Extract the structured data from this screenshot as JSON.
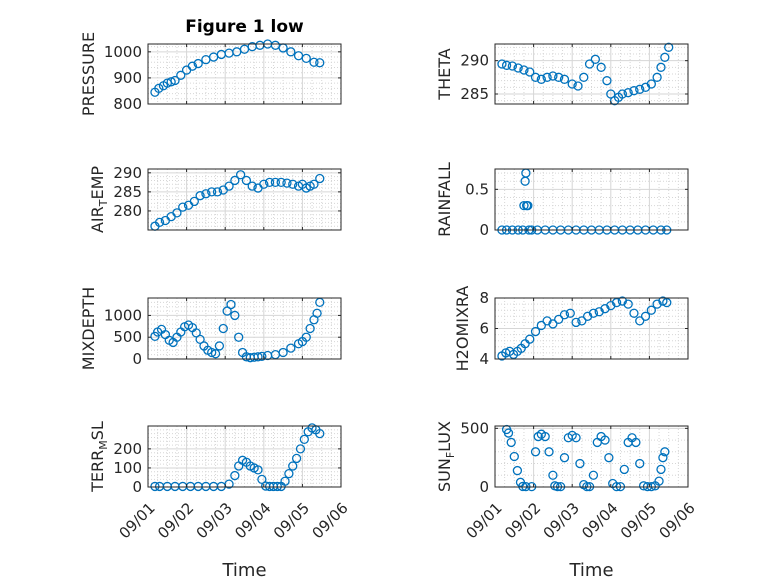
{
  "figure": {
    "title": "Figure 1 low"
  },
  "style": {
    "marker_color": "#0072BD",
    "axis_color": "#262626",
    "grid_color": "#b0b0b0"
  },
  "chart_data": [
    {
      "type": "scatter",
      "ylabel": "PRESSURE",
      "title": "Figure 1 low",
      "xlim": [
        0,
        5
      ],
      "ylim": [
        800,
        1030
      ],
      "yticks": [
        800,
        900,
        1000
      ],
      "grid": true,
      "xlabel": "",
      "x": [
        0.18,
        0.28,
        0.4,
        0.5,
        0.6,
        0.7,
        0.85,
        1.0,
        1.15,
        1.3,
        1.5,
        1.7,
        1.9,
        2.1,
        2.3,
        2.5,
        2.7,
        2.9,
        3.1,
        3.3,
        3.5,
        3.7,
        3.9,
        4.1,
        4.3,
        4.45
      ],
      "y": [
        845,
        860,
        870,
        880,
        885,
        890,
        910,
        930,
        945,
        955,
        970,
        980,
        990,
        995,
        1000,
        1010,
        1020,
        1025,
        1030,
        1025,
        1015,
        1000,
        985,
        975,
        960,
        958
      ]
    },
    {
      "type": "scatter",
      "ylabel": "THETA",
      "xlim": [
        0,
        5
      ],
      "ylim": [
        283.5,
        292.5
      ],
      "yticks": [
        285,
        290
      ],
      "grid": true,
      "xlabel": "",
      "x": [
        0.18,
        0.3,
        0.45,
        0.6,
        0.75,
        0.9,
        1.05,
        1.2,
        1.35,
        1.5,
        1.65,
        1.8,
        2.0,
        2.15,
        2.3,
        2.45,
        2.6,
        2.75,
        2.9,
        3.0,
        3.1,
        3.2,
        3.3,
        3.45,
        3.6,
        3.75,
        3.9,
        4.05,
        4.2,
        4.3,
        4.4,
        4.5
      ],
      "y": [
        289.5,
        289.3,
        289.2,
        288.9,
        288.6,
        288.3,
        287.5,
        287.2,
        287.5,
        287.7,
        287.5,
        287.2,
        286.5,
        286.2,
        287.5,
        289.5,
        290.2,
        289.0,
        287.0,
        285.0,
        284.0,
        284.5,
        285.0,
        285.2,
        285.5,
        285.7,
        286.0,
        286.5,
        287.5,
        289.0,
        290.5,
        292.0
      ]
    },
    {
      "type": "scatter",
      "ylabel": "AIR_TEMP",
      "xlim": [
        0,
        5
      ],
      "ylim": [
        275,
        291
      ],
      "yticks": [
        280,
        285,
        290
      ],
      "grid": true,
      "xlabel": "",
      "x": [
        0.18,
        0.3,
        0.45,
        0.6,
        0.75,
        0.9,
        1.05,
        1.2,
        1.35,
        1.5,
        1.65,
        1.8,
        1.95,
        2.1,
        2.25,
        2.4,
        2.55,
        2.7,
        2.85,
        3.0,
        3.15,
        3.3,
        3.45,
        3.6,
        3.75,
        3.9,
        4.0,
        4.1,
        4.2,
        4.3,
        4.45
      ],
      "y": [
        276,
        277,
        277.5,
        278.5,
        279.5,
        281,
        281.5,
        282.5,
        284,
        284.5,
        285,
        285,
        285.5,
        286.5,
        288,
        289.5,
        288,
        286.5,
        286,
        287,
        287.5,
        287.5,
        287.5,
        287.3,
        287,
        286.5,
        287,
        286,
        286.5,
        287,
        288.5
      ]
    },
    {
      "type": "scatter",
      "ylabel": "RAINFALL",
      "xlim": [
        0,
        5
      ],
      "ylim": [
        0,
        0.75
      ],
      "yticks": [
        0,
        0.5
      ],
      "grid": true,
      "xlabel": "",
      "x": [
        0.18,
        0.3,
        0.45,
        0.6,
        0.72,
        0.75,
        0.78,
        0.8,
        0.82,
        0.85,
        0.88,
        0.95,
        1.1,
        1.3,
        1.5,
        1.7,
        1.9,
        2.1,
        2.3,
        2.5,
        2.7,
        2.9,
        3.1,
        3.3,
        3.5,
        3.7,
        3.9,
        4.1,
        4.3,
        4.45
      ],
      "y": [
        0,
        0,
        0,
        0,
        0,
        0.3,
        0.6,
        0.7,
        0.3,
        0.3,
        0,
        0,
        0,
        0,
        0,
        0,
        0,
        0,
        0,
        0,
        0,
        0,
        0,
        0,
        0,
        0,
        0,
        0,
        0,
        0
      ]
    },
    {
      "type": "scatter",
      "ylabel": "MIXDEPTH",
      "xlim": [
        0,
        5
      ],
      "ylim": [
        0,
        1400
      ],
      "yticks": [
        0,
        500,
        1000
      ],
      "grid": true,
      "xlabel": "",
      "x": [
        0.18,
        0.25,
        0.35,
        0.45,
        0.55,
        0.65,
        0.75,
        0.85,
        0.95,
        1.05,
        1.15,
        1.25,
        1.35,
        1.45,
        1.55,
        1.65,
        1.75,
        1.85,
        1.95,
        2.05,
        2.15,
        2.25,
        2.35,
        2.45,
        2.55,
        2.65,
        2.75,
        2.85,
        2.95,
        3.1,
        3.3,
        3.5,
        3.7,
        3.9,
        4.0,
        4.1,
        4.2,
        4.3,
        4.38,
        4.45
      ],
      "y": [
        520,
        620,
        680,
        560,
        430,
        380,
        500,
        620,
        740,
        780,
        720,
        600,
        450,
        300,
        200,
        150,
        120,
        300,
        700,
        1100,
        1250,
        1000,
        500,
        150,
        50,
        30,
        40,
        50,
        60,
        80,
        100,
        150,
        250,
        350,
        400,
        500,
        700,
        900,
        1050,
        1300
      ]
    },
    {
      "type": "scatter",
      "ylabel": "H2OMIXRA",
      "xlim": [
        0,
        5
      ],
      "ylim": [
        4,
        8
      ],
      "yticks": [
        4,
        6,
        8
      ],
      "grid": true,
      "xlabel": "",
      "x": [
        0.18,
        0.28,
        0.38,
        0.48,
        0.58,
        0.68,
        0.78,
        0.9,
        1.05,
        1.2,
        1.35,
        1.5,
        1.65,
        1.8,
        1.95,
        2.1,
        2.25,
        2.4,
        2.55,
        2.7,
        2.85,
        3.0,
        3.15,
        3.3,
        3.45,
        3.6,
        3.75,
        3.9,
        4.05,
        4.2,
        4.35,
        4.45
      ],
      "y": [
        4.2,
        4.4,
        4.5,
        4.3,
        4.5,
        4.7,
        5.0,
        5.3,
        5.8,
        6.2,
        6.5,
        6.3,
        6.6,
        6.9,
        7.0,
        6.4,
        6.5,
        6.8,
        7.0,
        7.1,
        7.3,
        7.5,
        7.7,
        7.8,
        7.6,
        7.0,
        6.5,
        6.8,
        7.2,
        7.6,
        7.8,
        7.7
      ]
    },
    {
      "type": "scatter",
      "ylabel": "TERR_MSL",
      "xlim": [
        0,
        5
      ],
      "ylim": [
        0,
        320
      ],
      "yticks": [
        0,
        100,
        200
      ],
      "grid": true,
      "xlabel": "Time",
      "xticks": [
        0,
        1,
        2,
        3,
        4,
        5
      ],
      "xticklabels": [
        "09/01",
        "09/02",
        "09/03",
        "09/04",
        "09/05",
        "09/06"
      ],
      "x": [
        0.18,
        0.3,
        0.5,
        0.7,
        0.9,
        1.1,
        1.3,
        1.5,
        1.7,
        1.9,
        2.1,
        2.25,
        2.35,
        2.45,
        2.55,
        2.65,
        2.75,
        2.85,
        2.95,
        3.05,
        3.15,
        3.25,
        3.35,
        3.45,
        3.55,
        3.65,
        3.75,
        3.85,
        3.95,
        4.05,
        4.15,
        4.25,
        4.35,
        4.45
      ],
      "y": [
        3,
        3,
        3,
        3,
        3,
        3,
        3,
        3,
        3,
        3,
        15,
        60,
        110,
        140,
        130,
        110,
        100,
        90,
        40,
        5,
        3,
        3,
        3,
        3,
        30,
        70,
        110,
        150,
        200,
        250,
        290,
        310,
        300,
        280
      ]
    },
    {
      "type": "scatter",
      "ylabel": "SUN_FLUX",
      "xlim": [
        0,
        5
      ],
      "ylim": [
        0,
        520
      ],
      "yticks": [
        0,
        500
      ],
      "grid": true,
      "xlabel": "Time",
      "xticks": [
        0,
        1,
        2,
        3,
        4,
        5
      ],
      "xticklabels": [
        "09/01",
        "09/02",
        "09/03",
        "09/04",
        "09/05",
        "09/06"
      ],
      "x": [
        0.3,
        0.35,
        0.42,
        0.5,
        0.58,
        0.66,
        0.72,
        0.8,
        0.95,
        1.05,
        1.12,
        1.2,
        1.3,
        1.4,
        1.5,
        1.55,
        1.62,
        1.7,
        1.8,
        1.9,
        2.0,
        2.1,
        2.2,
        2.3,
        2.38,
        2.45,
        2.55,
        2.65,
        2.75,
        2.85,
        2.95,
        3.05,
        3.15,
        3.25,
        3.35,
        3.45,
        3.55,
        3.65,
        3.75,
        3.85,
        3.95,
        4.05,
        4.15,
        4.25,
        4.3,
        4.35,
        4.4
      ],
      "y": [
        490,
        460,
        380,
        260,
        140,
        40,
        5,
        3,
        3,
        300,
        430,
        450,
        430,
        300,
        100,
        10,
        3,
        3,
        250,
        420,
        440,
        420,
        200,
        20,
        3,
        3,
        100,
        380,
        430,
        400,
        250,
        30,
        3,
        3,
        150,
        380,
        420,
        380,
        200,
        10,
        3,
        3,
        10,
        50,
        150,
        250,
        300
      ]
    }
  ]
}
